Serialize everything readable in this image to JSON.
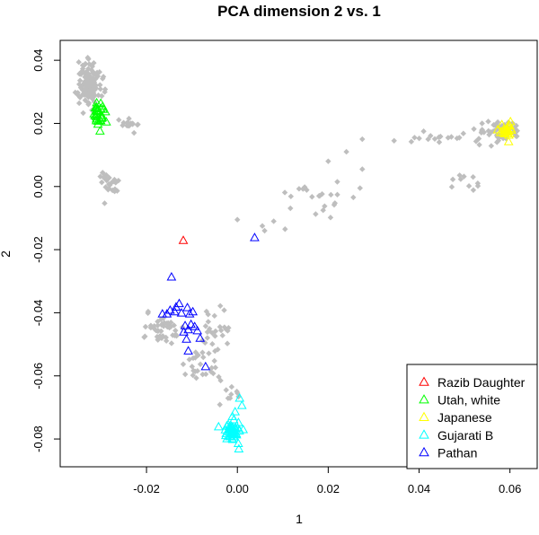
{
  "chart_data": {
    "type": "scatter",
    "title": "PCA dimension 2 vs. 1",
    "xlabel": "1",
    "ylabel": "2",
    "xlim": [
      -0.039,
      0.066
    ],
    "ylim": [
      -0.0888,
      0.0463
    ],
    "xticks": [
      -0.02,
      0.0,
      0.02,
      0.04,
      0.06
    ],
    "xtick_labels": [
      "-0.02",
      "0.00",
      "0.02",
      "0.04",
      "0.06"
    ],
    "yticks": [
      -0.08,
      -0.06,
      -0.04,
      -0.02,
      0.0,
      0.02,
      0.04
    ],
    "ytick_labels": [
      "-0.08",
      "-0.06",
      "-0.04",
      "-0.02",
      "0.00",
      "0.02",
      "0.04"
    ],
    "grid": false,
    "legend_position": "bottom-right",
    "background_color": "#bebebe",
    "background_marker": "diamond",
    "background_clusters": [
      {
        "x": -0.0325,
        "y": 0.033,
        "sx": 0.0012,
        "sy": 0.0035,
        "n": 130
      },
      {
        "x": -0.0235,
        "y": 0.0195,
        "sx": 0.0012,
        "sy": 0.0012,
        "n": 18
      },
      {
        "x": -0.0285,
        "y": 0.0015,
        "sx": 0.0012,
        "sy": 0.0022,
        "n": 25
      },
      {
        "x": 0.058,
        "y": 0.0175,
        "sx": 0.0025,
        "sy": 0.0015,
        "n": 60
      },
      {
        "x": 0.045,
        "y": 0.0155,
        "sx": 0.004,
        "sy": 0.0008,
        "n": 14
      },
      {
        "x": 0.05,
        "y": 0.0015,
        "sx": 0.0025,
        "sy": 0.0022,
        "n": 10
      },
      {
        "x": 0.016,
        "y": -0.0045,
        "sx": 0.0035,
        "sy": 0.0025,
        "n": 20
      },
      {
        "x": -0.017,
        "y": -0.0455,
        "sx": 0.0023,
        "sy": 0.0025,
        "n": 45
      },
      {
        "x": -0.0045,
        "y": -0.0445,
        "sx": 0.0014,
        "sy": 0.0028,
        "n": 22
      },
      {
        "x": -0.0075,
        "y": -0.057,
        "sx": 0.0025,
        "sy": 0.0045,
        "n": 30
      },
      {
        "x": -0.0025,
        "y": -0.066,
        "sx": 0.0012,
        "sy": 0.002,
        "n": 10
      }
    ],
    "background_points": [
      [
        0.0,
        -0.0105
      ],
      [
        0.008,
        -0.011
      ],
      [
        0.006,
        -0.014
      ],
      [
        0.0105,
        -0.0135
      ],
      [
        0.027,
        -0.0005
      ],
      [
        0.0275,
        0.0055
      ],
      [
        0.0275,
        0.015
      ],
      [
        0.0345,
        0.0145
      ],
      [
        0.039,
        0.0155
      ],
      [
        0.041,
        0.0175
      ],
      [
        0.02,
        0.008
      ],
      [
        0.022,
        0.0015
      ],
      [
        0.024,
        0.011
      ],
      [
        0.0055,
        -0.0125
      ]
    ],
    "series": [
      {
        "name": "Razib Daughter",
        "color": "#ff0000",
        "marker": "triangle",
        "points": [
          [
            -0.0119,
            -0.0172
          ]
        ]
      },
      {
        "name": "Utah, white",
        "color": "#00ff00",
        "marker": "triangle",
        "center": [
          -0.0308,
          0.0235
        ],
        "spread": [
          0.0008,
          0.0018
        ],
        "count": 30
      },
      {
        "name": "Japanese",
        "color": "#ffff00",
        "marker": "triangle",
        "center": [
          0.0593,
          0.0178
        ],
        "spread": [
          0.0009,
          0.0012
        ],
        "count": 25
      },
      {
        "name": "Gujarati B",
        "color": "#00ffff",
        "marker": "triangle",
        "center": [
          -0.001,
          -0.0775
        ],
        "spread": [
          0.0009,
          0.0018
        ],
        "count": 45,
        "points": [
          [
            0.0005,
            -0.0672
          ],
          [
            0.001,
            -0.0695
          ],
          [
            -0.0005,
            -0.0715
          ]
        ]
      },
      {
        "name": "Pathan",
        "color": "#0000ff",
        "marker": "triangle",
        "points": [
          [
            0.0038,
            -0.0163
          ],
          [
            -0.0145,
            -0.0288
          ],
          [
            -0.0128,
            -0.0372
          ],
          [
            -0.0135,
            -0.0383
          ],
          [
            -0.011,
            -0.0385
          ],
          [
            -0.0138,
            -0.0398
          ],
          [
            -0.0123,
            -0.0402
          ],
          [
            -0.0105,
            -0.0405
          ],
          [
            -0.0155,
            -0.0405
          ],
          [
            -0.0098,
            -0.0398
          ],
          [
            -0.0115,
            -0.0442
          ],
          [
            -0.0108,
            -0.0455
          ],
          [
            -0.0102,
            -0.0438
          ],
          [
            -0.0118,
            -0.0462
          ],
          [
            -0.0088,
            -0.0458
          ],
          [
            -0.0082,
            -0.0482
          ],
          [
            -0.0112,
            -0.0485
          ],
          [
            -0.0108,
            -0.0522
          ],
          [
            -0.007,
            -0.0572
          ],
          [
            -0.0148,
            -0.0393
          ],
          [
            -0.0165,
            -0.0405
          ],
          [
            -0.0094,
            -0.0445
          ]
        ]
      }
    ]
  }
}
